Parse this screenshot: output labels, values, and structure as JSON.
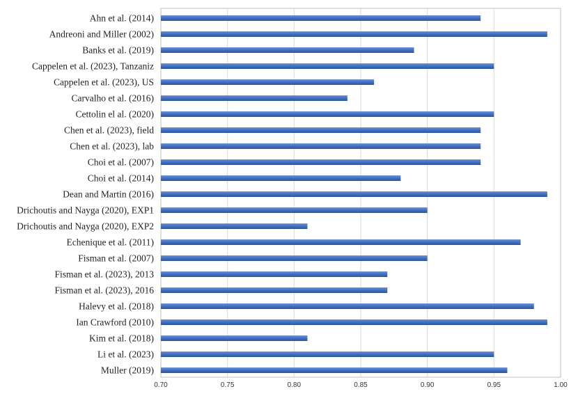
{
  "chart_data": {
    "type": "bar",
    "orientation": "horizontal",
    "categories": [
      "Ahn et al. (2014)",
      "Andreoni and Miller (2002)",
      "Banks et al. (2019)",
      "Cappelen et al. (2023), Tanzaniz",
      "Cappelen et al. (2023), US",
      "Carvalho et al. (2016)",
      "Cettolin el al. (2020)",
      "Chen et al. (2023), field",
      "Chen et al. (2023), lab",
      "Choi et al. (2007)",
      "Choi et al. (2014)",
      "Dean and Martin (2016)",
      "Drichoutis and Nayga (2020), EXP1",
      "Drichoutis and Nayga (2020), EXP2",
      "Echenique et al. (2011)",
      "Fisman et al. (2007)",
      "Fisman et al. (2023), 2013",
      "Fisman et al. (2023), 2016",
      "Halevy et al. (2018)",
      "Ian Crawford (2010)",
      "Kim et al. (2018)",
      "Li et al. (2023)",
      "Muller (2019)"
    ],
    "values": [
      0.94,
      0.99,
      0.89,
      0.95,
      0.86,
      0.84,
      0.95,
      0.94,
      0.94,
      0.94,
      0.88,
      0.99,
      0.9,
      0.81,
      0.97,
      0.9,
      0.87,
      0.87,
      0.98,
      0.99,
      0.81,
      0.95,
      0.96
    ],
    "xlim": [
      0.7,
      1.0
    ],
    "xticks": [
      "0.70",
      "0.75",
      "0.80",
      "0.85",
      "0.90",
      "0.95",
      "1.00"
    ],
    "title": "",
    "xlabel": "",
    "ylabel": "",
    "grid": "vertical",
    "legend": "none",
    "colors": {
      "bar": "#4472c4",
      "bar_dark": "#2f5597",
      "grid": "#d9d9d9",
      "axis": "#bfbfbf"
    }
  }
}
